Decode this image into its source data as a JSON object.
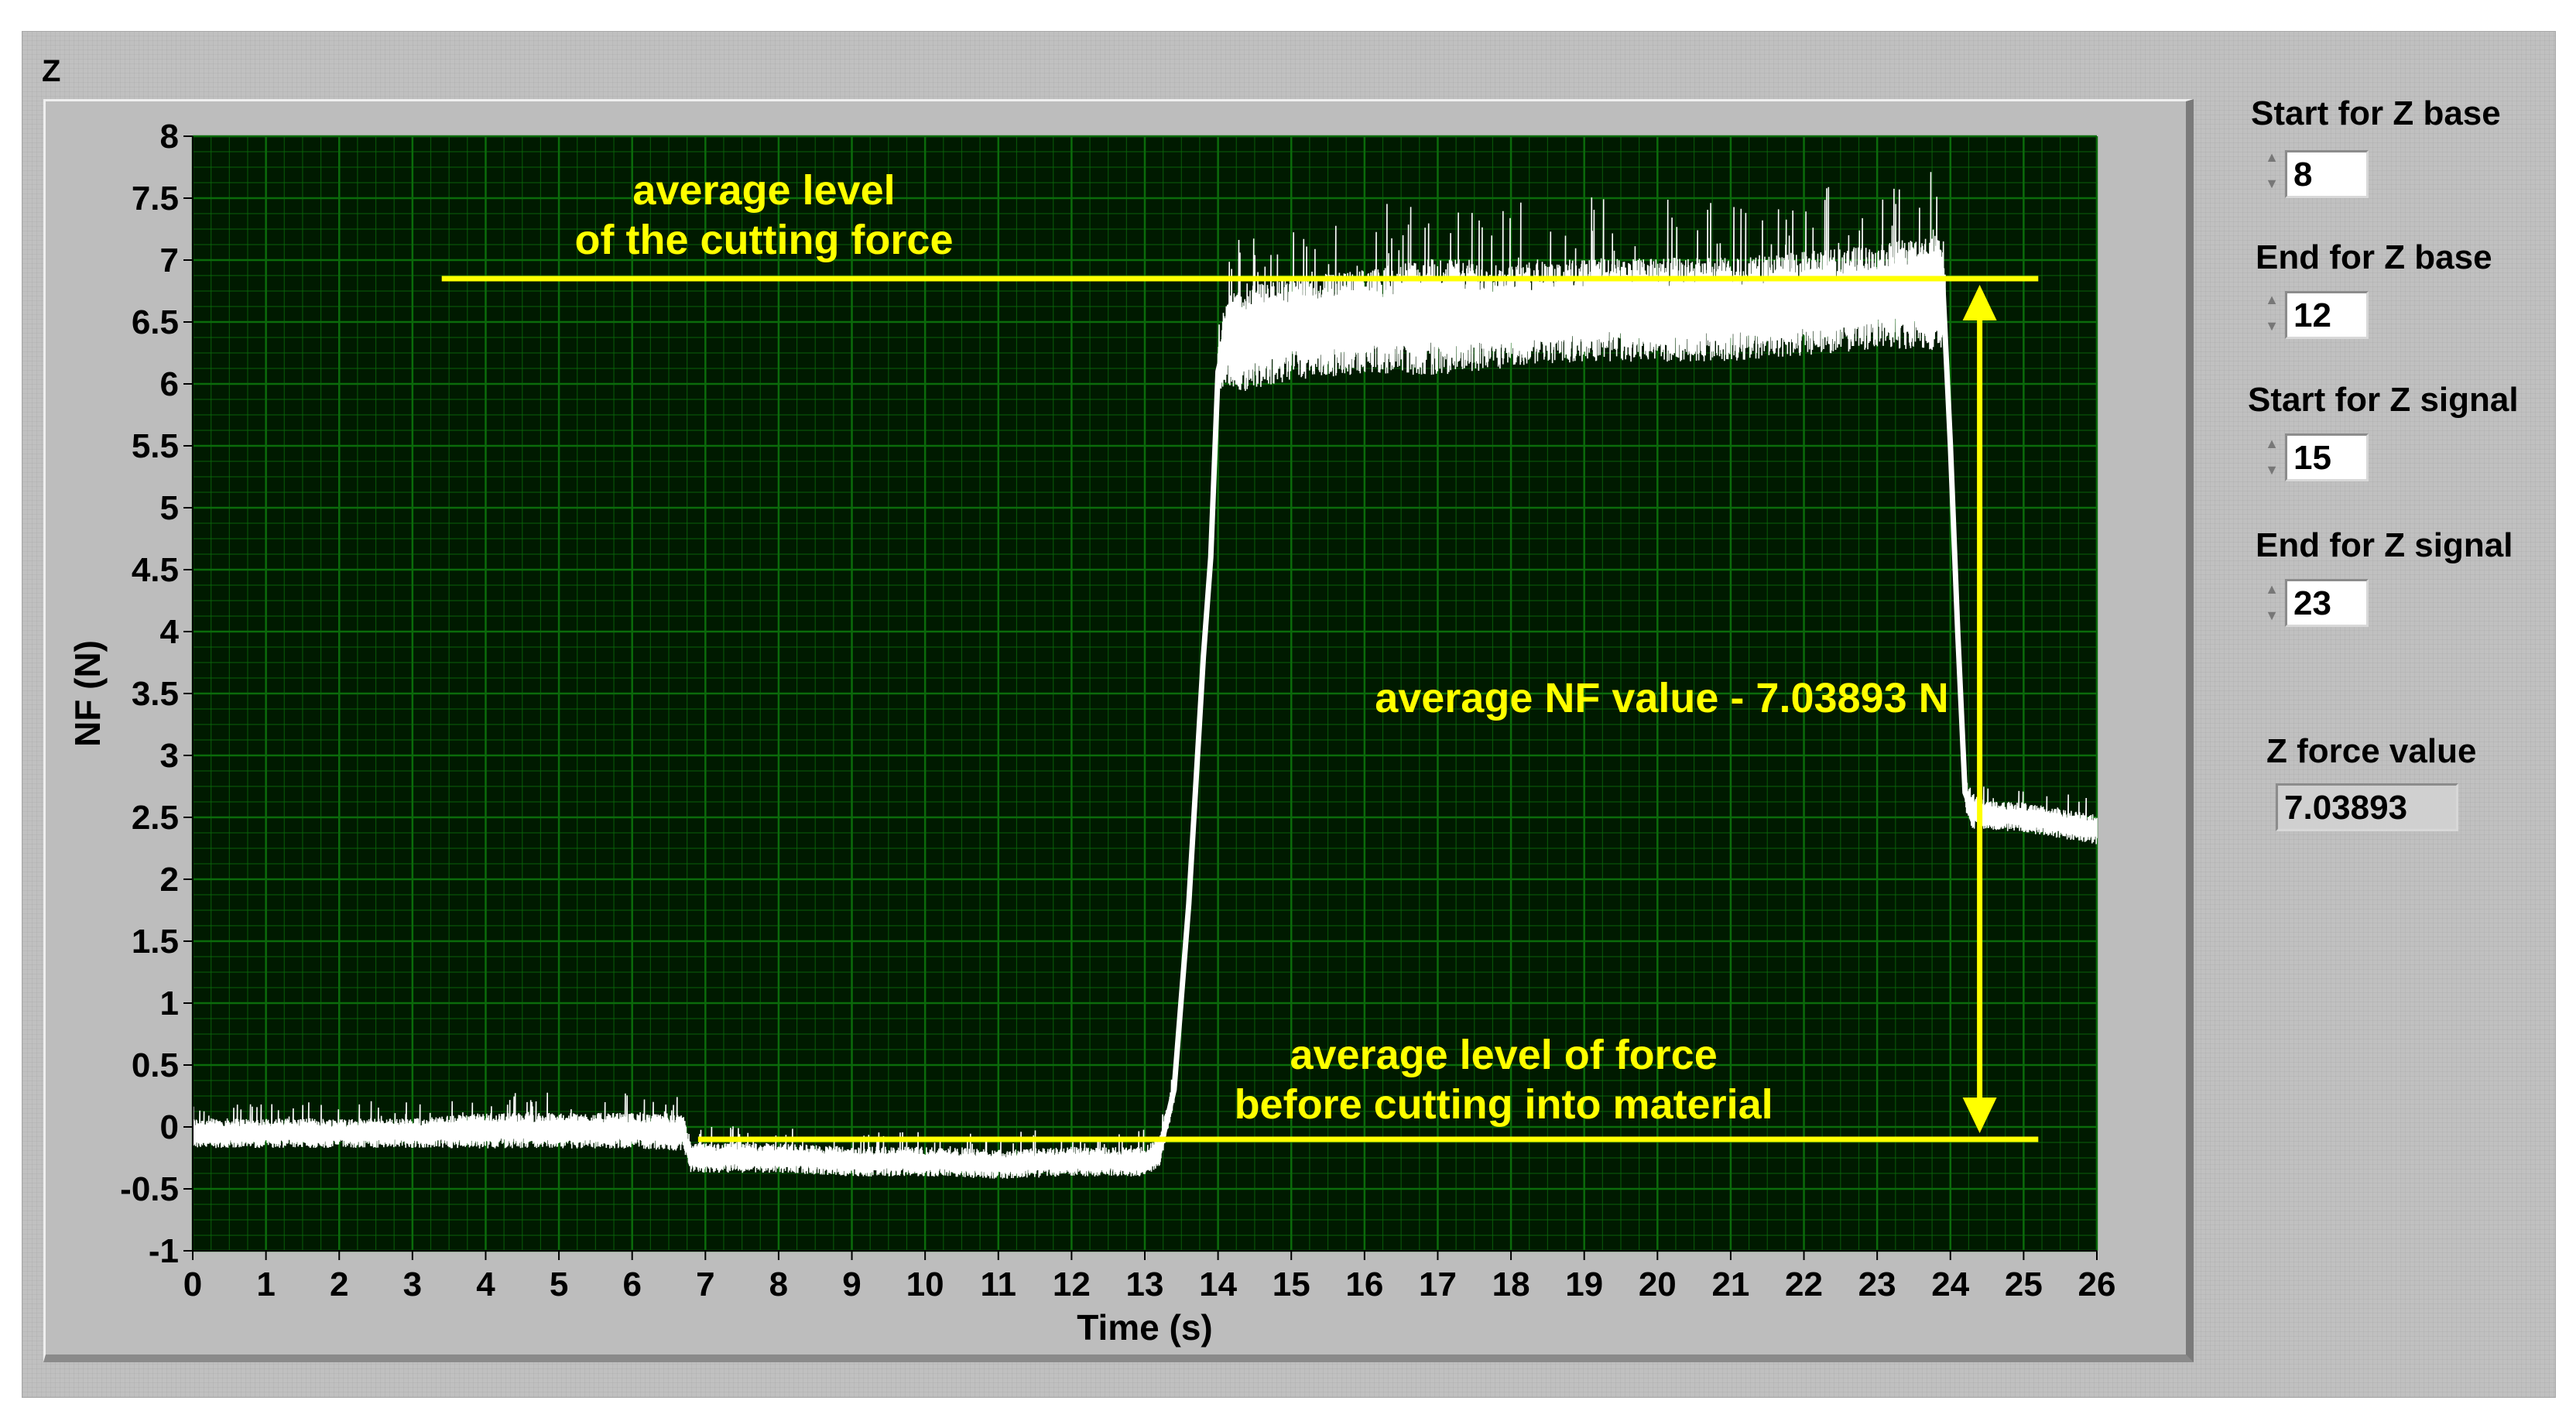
{
  "window": {
    "graph_label": "Z"
  },
  "controls": [
    {
      "label": "Start for Z base",
      "value": "8"
    },
    {
      "label": "End for Z base",
      "value": "12"
    },
    {
      "label": "Start for Z signal",
      "value": "15"
    },
    {
      "label": "End for Z signal",
      "value": "23"
    }
  ],
  "indicator": {
    "label": "Z force value",
    "value": "7.03893"
  },
  "colors": {
    "plot_background": "#001a00",
    "grid": "#0b6b0b",
    "signal": "#ffffff",
    "annotation": "#ffff00"
  },
  "chart_data": {
    "type": "line",
    "title": "",
    "xlabel": "Time (s)",
    "ylabel": "NF (N)",
    "xlim": [
      0,
      26
    ],
    "ylim": [
      -1,
      8
    ],
    "x_ticks": [
      0,
      1,
      2,
      3,
      4,
      5,
      6,
      7,
      8,
      9,
      10,
      11,
      12,
      13,
      14,
      15,
      16,
      17,
      18,
      19,
      20,
      21,
      22,
      23,
      24,
      25,
      26
    ],
    "x_tick_labels": [
      "0",
      "1",
      "2",
      "3",
      "4",
      "5",
      "6",
      "7",
      "8",
      "9",
      "10",
      "11",
      "12",
      "13",
      "14",
      "15",
      "16",
      "17",
      "18",
      "19",
      "20",
      "21",
      "22",
      "23",
      "24",
      "25",
      "26"
    ],
    "y_ticks": [
      -1,
      -0.5,
      0,
      0.5,
      1,
      1.5,
      2,
      2.5,
      3,
      3.5,
      4,
      4.5,
      5,
      5.5,
      6,
      6.5,
      7,
      7.5,
      8
    ],
    "y_tick_labels": [
      "-1",
      "-0.5",
      "0",
      "0.5",
      "1",
      "1.5",
      "2",
      "2.5",
      "3",
      "3.5",
      "4",
      "4.5",
      "5",
      "5.5",
      "6",
      "6.5",
      "7",
      "7.5",
      "8"
    ],
    "grid": true,
    "series": [
      {
        "color": "#ffffff",
        "x": [
          0,
          1,
          2,
          3,
          4,
          5,
          6,
          6.7,
          6.8,
          7,
          8,
          9,
          10,
          11,
          12,
          13,
          13.2,
          13.4,
          13.6,
          13.8,
          13.9,
          14.0,
          14.1,
          14.3,
          15,
          16,
          17,
          18,
          19,
          20,
          21,
          22,
          23,
          23.9,
          24.0,
          24.1,
          24.2,
          24.3,
          24.5,
          25,
          26
        ],
        "y": [
          -0.05,
          -0.05,
          -0.05,
          -0.05,
          -0.03,
          -0.03,
          -0.03,
          -0.05,
          -0.25,
          -0.25,
          -0.25,
          -0.28,
          -0.28,
          -0.3,
          -0.28,
          -0.28,
          -0.2,
          0.3,
          1.8,
          3.8,
          4.6,
          6.1,
          6.35,
          6.35,
          6.45,
          6.5,
          6.55,
          6.55,
          6.6,
          6.6,
          6.6,
          6.65,
          6.7,
          6.75,
          5.5,
          4.0,
          2.7,
          2.55,
          2.52,
          2.5,
          2.4
        ],
        "band": [
          0.1,
          0.1,
          0.1,
          0.1,
          0.12,
          0.12,
          0.12,
          0.12,
          0.1,
          0.1,
          0.1,
          0.1,
          0.1,
          0.1,
          0.1,
          0.1,
          0.1,
          0.1,
          0.1,
          0.1,
          0.1,
          0.15,
          0.3,
          0.35,
          0.35,
          0.35,
          0.4,
          0.35,
          0.35,
          0.35,
          0.35,
          0.35,
          0.35,
          0.4,
          0.1,
          0.1,
          0.12,
          0.12,
          0.1,
          0.1,
          0.1
        ]
      }
    ],
    "annotations": {
      "top_level_text_line1": "average level",
      "top_level_text_line2": "of the cutting force",
      "top_level_y": 6.85,
      "top_level_x": [
        3.4,
        25.2
      ],
      "bottom_level_text_line1": "average level of force",
      "bottom_level_text_line2": "before cutting into material",
      "bottom_level_y": -0.1,
      "bottom_level_x": [
        6.9,
        25.2
      ],
      "arrow_x": 24.4,
      "arrow_text": "average NF value - 7.03893 N"
    }
  }
}
